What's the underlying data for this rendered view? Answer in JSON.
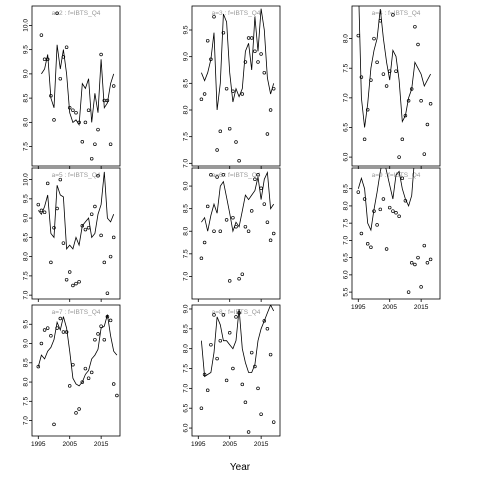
{
  "chart_data": {
    "type": "scatter",
    "xlabel": "Year",
    "panels": [
      {
        "title": "a=2  :  f=IBTS_Q4",
        "xlim": [
          1993,
          2021
        ],
        "ylim": [
          7.1,
          10.4
        ],
        "yticks": [
          7.5,
          8.0,
          8.5,
          9.0,
          9.5,
          10.0
        ],
        "x": [
          1996,
          1997,
          1998,
          1999,
          2000,
          2001,
          2002,
          2003,
          2004,
          2005,
          2006,
          2007,
          2008,
          2009,
          2010,
          2011,
          2012,
          2013,
          2014,
          2015,
          2016,
          2017,
          2018,
          2019
        ],
        "obs": [
          9.8,
          9.3,
          9.3,
          8.55,
          8.05,
          10.25,
          8.9,
          9.35,
          9.55,
          8.3,
          8.25,
          8.2,
          8.0,
          7.6,
          8.0,
          8.25,
          7.25,
          7.55,
          7.85,
          9.4,
          8.45,
          8.45,
          7.55,
          8.75
        ],
        "fit": [
          9.0,
          9.1,
          9.4,
          8.5,
          8.3,
          9.6,
          9.1,
          9.5,
          9.0,
          8.2,
          8.0,
          8.05,
          7.95,
          8.8,
          8.7,
          8.9,
          8.0,
          8.6,
          8.2,
          9.3,
          8.3,
          8.4,
          8.8,
          9.0
        ]
      },
      {
        "title": "a=3  :  f=IBTS_Q4",
        "xlim": [
          1993,
          2021
        ],
        "ylim": [
          6.95,
          9.95
        ],
        "yticks": [
          7.0,
          7.5,
          8.0,
          8.5,
          9.0,
          9.5
        ],
        "x": [
          1996,
          1997,
          1998,
          1999,
          2000,
          2001,
          2002,
          2003,
          2004,
          2005,
          2006,
          2007,
          2008,
          2009,
          2010,
          2011,
          2012,
          2013,
          2014,
          2015,
          2016,
          2017,
          2018,
          2019
        ],
        "obs": [
          8.2,
          8.3,
          9.3,
          8.95,
          9.75,
          7.25,
          7.6,
          9.45,
          8.4,
          7.65,
          8.35,
          7.4,
          7.05,
          8.3,
          8.9,
          9.35,
          9.35,
          9.1,
          8.9,
          9.05,
          8.7,
          7.55,
          8.0,
          8.4
        ],
        "fit": [
          8.7,
          8.55,
          8.7,
          8.95,
          9.45,
          8.0,
          8.5,
          9.8,
          9.65,
          8.7,
          8.15,
          8.4,
          8.25,
          8.4,
          9.1,
          9.25,
          8.75,
          9.75,
          9.1,
          9.9,
          9.5,
          8.6,
          8.3,
          8.5
        ]
      },
      {
        "title": "a=4  :  f=IBTS_Q4",
        "xlim": [
          1993,
          2021
        ],
        "ylim": [
          5.85,
          8.55
        ],
        "yticks": [
          6.0,
          6.5,
          7.0,
          7.5,
          8.0
        ],
        "x": [
          1995,
          1996,
          1997,
          1998,
          1999,
          2000,
          2001,
          2002,
          2003,
          2004,
          2005,
          2006,
          2007,
          2008,
          2009,
          2010,
          2011,
          2012,
          2013,
          2014,
          2015,
          2016,
          2017,
          2018
        ],
        "obs": [
          8.05,
          7.35,
          6.3,
          6.8,
          7.3,
          8.0,
          7.6,
          8.3,
          7.4,
          7.2,
          7.45,
          8.4,
          7.45,
          6.0,
          6.3,
          6.7,
          6.95,
          7.15,
          8.2,
          7.9,
          6.95,
          6.05,
          6.55,
          6.9
        ],
        "fit": [
          9.0,
          7.0,
          6.5,
          6.9,
          7.5,
          7.8,
          8.0,
          8.5,
          8.0,
          7.6,
          7.3,
          7.8,
          7.7,
          7.3,
          6.6,
          6.7,
          7.0,
          7.15,
          7.6,
          7.5,
          7.4,
          7.2,
          7.3,
          7.4
        ]
      },
      {
        "title": "a=5  :  f=IBTS_Q4",
        "xlim": [
          1993,
          2021
        ],
        "ylim": [
          6.9,
          10.3
        ],
        "yticks": [
          7.0,
          7.5,
          8.0,
          8.5,
          9.0,
          9.5,
          10.0
        ],
        "x": [
          1995,
          1996,
          1997,
          1998,
          1999,
          2000,
          2001,
          2002,
          2003,
          2004,
          2005,
          2006,
          2007,
          2008,
          2009,
          2010,
          2011,
          2012,
          2013,
          2014,
          2015,
          2016,
          2017,
          2018,
          2019
        ],
        "obs": [
          9.35,
          9.2,
          9.15,
          9.9,
          7.85,
          8.75,
          9.25,
          10.0,
          8.35,
          7.4,
          7.6,
          7.25,
          7.3,
          7.35,
          8.8,
          8.7,
          8.75,
          9.1,
          9.3,
          10.1,
          8.55,
          7.85,
          7.05,
          8.0,
          8.5
        ],
        "fit": [
          9.2,
          9.1,
          9.3,
          9.6,
          8.6,
          8.5,
          9.85,
          9.6,
          9.55,
          8.2,
          8.3,
          8.2,
          8.5,
          8.3,
          8.8,
          8.9,
          9.0,
          8.5,
          8.6,
          9.1,
          9.35,
          10.2,
          9.0,
          8.9,
          9.1
        ]
      },
      {
        "title": "a=6  :  f=IBTS_Q4",
        "xlim": [
          1993,
          2021
        ],
        "ylim": [
          6.5,
          9.4
        ],
        "yticks": [
          7.0,
          7.5,
          8.0,
          8.5,
          9.0
        ],
        "x": [
          1996,
          1997,
          1998,
          1999,
          2000,
          2001,
          2002,
          2003,
          2004,
          2005,
          2006,
          2007,
          2008,
          2009,
          2010,
          2011,
          2012,
          2013,
          2014,
          2015,
          2016,
          2017,
          2018,
          2019
        ],
        "obs": [
          7.4,
          7.75,
          8.55,
          9.25,
          8.0,
          9.2,
          8.0,
          9.25,
          8.25,
          6.9,
          8.3,
          8.1,
          6.95,
          7.05,
          8.1,
          8.0,
          8.45,
          9.15,
          9.25,
          8.95,
          8.6,
          8.2,
          7.8,
          7.95
        ],
        "fit": [
          8.2,
          8.3,
          8.0,
          8.35,
          8.6,
          8.4,
          9.0,
          9.1,
          8.75,
          8.4,
          8.0,
          8.2,
          8.1,
          8.45,
          8.8,
          8.7,
          8.8,
          8.9,
          9.2,
          8.7,
          9.15,
          9.3,
          8.5,
          8.6
        ]
      },
      {
        "title": "a=9  :  f=IBTS_Q4",
        "xlim": [
          1993,
          2021
        ],
        "ylim": [
          5.3,
          9.1
        ],
        "yticks": [
          5.5,
          6.0,
          6.5,
          7.0,
          7.5,
          8.0,
          8.5
        ],
        "x": [
          1995,
          1996,
          1997,
          1998,
          1999,
          2000,
          2001,
          2002,
          2003,
          2004,
          2005,
          2006,
          2007,
          2008,
          2009,
          2010,
          2011,
          2012,
          2013,
          2014,
          2015,
          2016,
          2017,
          2018
        ],
        "obs": [
          8.4,
          7.2,
          8.2,
          6.9,
          6.8,
          7.85,
          7.45,
          7.9,
          8.2,
          6.75,
          7.95,
          7.85,
          7.8,
          7.7,
          8.8,
          8.15,
          5.5,
          6.35,
          6.3,
          6.5,
          5.65,
          6.85,
          6.35,
          6.45
        ],
        "fit": [
          8.5,
          8.8,
          8.5,
          7.5,
          7.3,
          7.9,
          8.4,
          9.0,
          9.4,
          9.0,
          8.6,
          8.2,
          8.9,
          9.0,
          8.5,
          8.2,
          8.0,
          8.3,
          9.5,
          9.8,
          9.4,
          9.5,
          9.5,
          9.6
        ]
      },
      {
        "title": "a=7  :  f=IBTS_Q4",
        "xlim": [
          1993,
          2021
        ],
        "ylim": [
          6.6,
          10.0
        ],
        "yticks": [
          7.0,
          7.5,
          8.0,
          8.5,
          9.0,
          9.5
        ],
        "x": [
          1995,
          1996,
          1997,
          1998,
          1999,
          2000,
          2001,
          2002,
          2003,
          2004,
          2005,
          2006,
          2007,
          2008,
          2009,
          2010,
          2011,
          2012,
          2013,
          2014,
          2015,
          2016,
          2017,
          2018,
          2019,
          2020
        ],
        "obs": [
          8.4,
          9.0,
          9.35,
          9.4,
          9.2,
          6.9,
          9.4,
          9.65,
          9.3,
          9.3,
          7.9,
          8.45,
          7.2,
          7.3,
          8.0,
          8.35,
          8.1,
          8.25,
          9.1,
          9.25,
          9.45,
          9.1,
          9.7,
          9.6,
          7.95,
          7.65
        ],
        "fit": [
          8.4,
          8.7,
          8.6,
          8.8,
          8.9,
          9.1,
          9.55,
          9.35,
          9.7,
          9.4,
          8.8,
          8.1,
          7.95,
          7.9,
          8.0,
          8.2,
          8.3,
          8.6,
          8.7,
          8.85,
          9.4,
          9.45,
          9.75,
          9.2,
          8.8,
          8.7
        ]
      },
      {
        "title": "a=8  :  f=IBTS_Q4",
        "xlim": [
          1993,
          2021
        ],
        "ylim": [
          5.8,
          9.1
        ],
        "yticks": [
          6.0,
          6.5,
          7.0,
          7.5,
          8.0,
          8.5,
          9.0
        ],
        "x": [
          1996,
          1997,
          1998,
          1999,
          2000,
          2001,
          2002,
          2003,
          2004,
          2005,
          2006,
          2007,
          2008,
          2009,
          2010,
          2011,
          2012,
          2013,
          2014,
          2015,
          2016,
          2017,
          2018,
          2019
        ],
        "obs": [
          6.5,
          7.35,
          6.95,
          8.1,
          8.85,
          7.75,
          8.2,
          8.85,
          7.2,
          8.4,
          7.5,
          8.8,
          8.9,
          7.1,
          6.65,
          5.9,
          7.9,
          7.55,
          7.0,
          6.35,
          8.7,
          8.5,
          7.85,
          6.15
        ],
        "fit": [
          8.2,
          7.3,
          7.35,
          7.4,
          7.9,
          8.8,
          8.6,
          8.2,
          8.2,
          8.1,
          8.0,
          8.2,
          9.0,
          8.0,
          7.65,
          7.4,
          7.4,
          7.6,
          8.2,
          8.5,
          8.7,
          8.9,
          9.1,
          8.95
        ]
      }
    ]
  }
}
